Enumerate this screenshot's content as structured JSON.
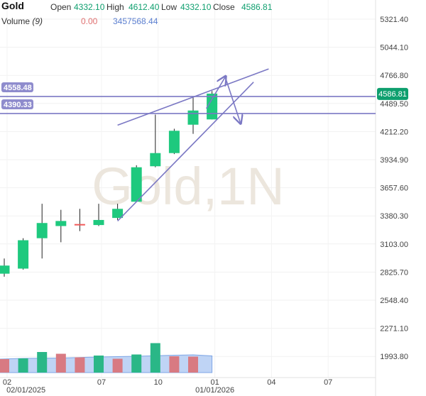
{
  "header": {
    "symbol": "Gold",
    "open_label": "Open",
    "open_value": "4332.10",
    "high_label": "High",
    "high_value": "4612.40",
    "low_label": "Low",
    "low_value": "4332.10",
    "close_label": "Close",
    "close_value": "4586.81",
    "volume_label": "Volume",
    "volume_period": "(9)",
    "volume_ma_value": "0.00",
    "volume_value": "3457568.44"
  },
  "watermark": "Gold,1N",
  "colors": {
    "up": "#1ec97e",
    "down": "#f05a5a",
    "line": "#7b78c4",
    "price_tag": "#7b78c4",
    "current_price_tag": "#0e9f6e",
    "volume_up": "#2ab787",
    "volume_down": "#d87a82",
    "volume_area": "#a9c6f2"
  },
  "chart_data": {
    "type": "candlestick",
    "y_ticks": [
      "5321.40",
      "5044.10",
      "4766.80",
      "4489.50",
      "4212.20",
      "3934.90",
      "3657.60",
      "3380.30",
      "3103.00",
      "2825.70",
      "2548.40",
      "2271.10",
      "1993.80"
    ],
    "y_range": [
      1890,
      5460
    ],
    "x_ticks": [
      {
        "label": "02",
        "slot": 0
      },
      {
        "label": "07",
        "slot": 5
      },
      {
        "label": "10",
        "slot": 8
      },
      {
        "label": "01",
        "slot": 11
      },
      {
        "label": "04",
        "slot": 14
      },
      {
        "label": "07",
        "slot": 17
      }
    ],
    "x_date_labels": [
      {
        "label": "02/01/2025",
        "slot": 1
      },
      {
        "label": "01/01/2026",
        "slot": 11
      }
    ],
    "candles": [
      {
        "slot": 0,
        "open": 2810,
        "high": 2960,
        "low": 2780,
        "close": 2890
      },
      {
        "slot": 1,
        "open": 2860,
        "high": 3160,
        "low": 2850,
        "close": 3140
      },
      {
        "slot": 2,
        "open": 3160,
        "high": 3500,
        "low": 2960,
        "close": 3310
      },
      {
        "slot": 3,
        "open": 3280,
        "high": 3440,
        "low": 3120,
        "close": 3330
      },
      {
        "slot": 4,
        "open": 3300,
        "high": 3450,
        "low": 3230,
        "close": 3290
      },
      {
        "slot": 5,
        "open": 3290,
        "high": 3500,
        "low": 3280,
        "close": 3340
      },
      {
        "slot": 6,
        "open": 3360,
        "high": 3500,
        "low": 3340,
        "close": 3450
      },
      {
        "slot": 7,
        "open": 3520,
        "high": 3880,
        "low": 3520,
        "close": 3860
      },
      {
        "slot": 8,
        "open": 3870,
        "high": 4380,
        "low": 3860,
        "close": 4000
      },
      {
        "slot": 9,
        "open": 4000,
        "high": 4240,
        "low": 3990,
        "close": 4220
      },
      {
        "slot": 10,
        "open": 4280,
        "high": 4550,
        "low": 4190,
        "close": 4420
      },
      {
        "slot": 11,
        "open": 4332.1,
        "high": 4612.4,
        "low": 4332.1,
        "close": 4586.81
      }
    ],
    "volume": {
      "range": [
        0,
        1
      ],
      "bars": [
        {
          "slot": 0,
          "value": 0.38,
          "dir": "down"
        },
        {
          "slot": 1,
          "value": 0.4,
          "dir": "up"
        },
        {
          "slot": 2,
          "value": 0.58,
          "dir": "up"
        },
        {
          "slot": 3,
          "value": 0.53,
          "dir": "down"
        },
        {
          "slot": 4,
          "value": 0.43,
          "dir": "down"
        },
        {
          "slot": 5,
          "value": 0.48,
          "dir": "up"
        },
        {
          "slot": 6,
          "value": 0.39,
          "dir": "down"
        },
        {
          "slot": 7,
          "value": 0.51,
          "dir": "up"
        },
        {
          "slot": 8,
          "value": 0.83,
          "dir": "up"
        },
        {
          "slot": 9,
          "value": 0.46,
          "dir": "down"
        },
        {
          "slot": 10,
          "value": 0.45,
          "dir": "down"
        }
      ],
      "ma": [
        {
          "slot": -0.3,
          "value": 0.38
        },
        {
          "slot": 1,
          "value": 0.4
        },
        {
          "slot": 3,
          "value": 0.41
        },
        {
          "slot": 5,
          "value": 0.44
        },
        {
          "slot": 7,
          "value": 0.46
        },
        {
          "slot": 9,
          "value": 0.49
        },
        {
          "slot": 10,
          "value": 0.5
        },
        {
          "slot": 11,
          "value": 0.47
        }
      ]
    },
    "horizontal_lines": [
      {
        "label": "4558.48",
        "price": 4558.48
      },
      {
        "label": "4390.33",
        "price": 4390.33
      }
    ],
    "current_price_label": "4586.81",
    "trend_lines": [
      {
        "from": {
          "slot": 6,
          "price": 4275
        },
        "to": {
          "slot": 14,
          "price": 4830
        }
      },
      {
        "from": {
          "slot": 6,
          "price": 3330
        },
        "to": {
          "slot": 13.2,
          "price": 4700
        }
      }
    ],
    "projection": [
      {
        "slot": 10.7,
        "price": 4440
      },
      {
        "slot": 11.7,
        "price": 4750
      },
      {
        "slot": 12.5,
        "price": 4300
      }
    ]
  }
}
